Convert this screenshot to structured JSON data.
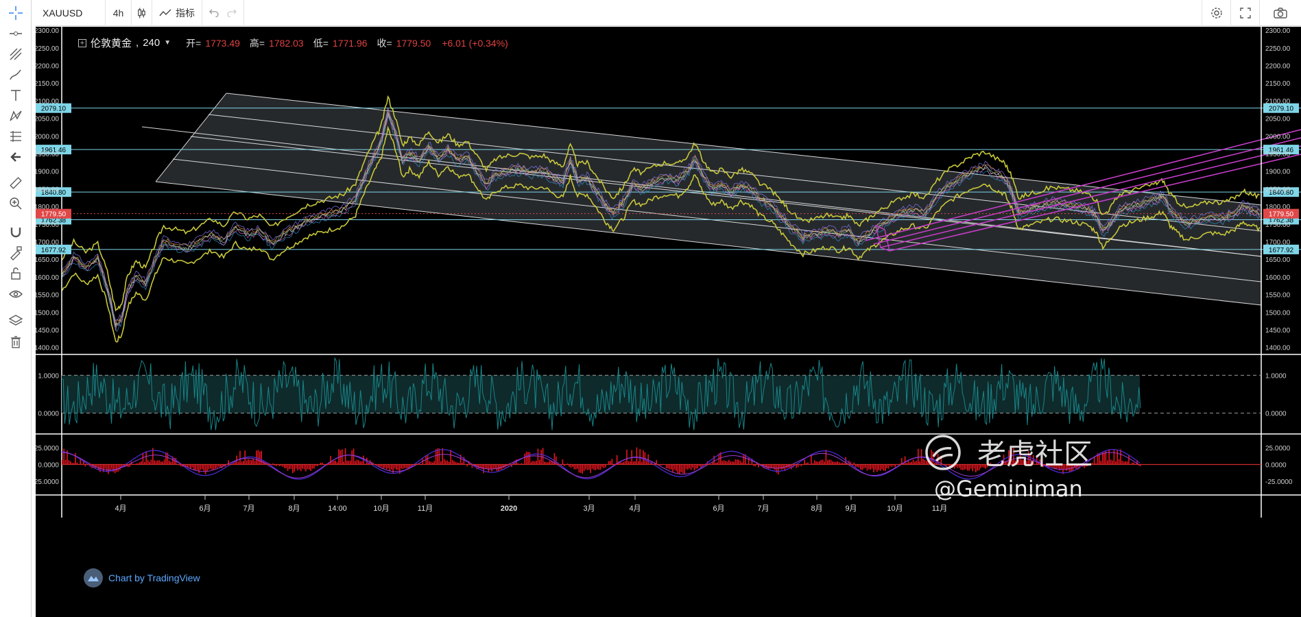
{
  "toolbar": {
    "symbol": "XAUUSD",
    "interval": "4h",
    "indicators_label": "指标",
    "icons": [
      "candle-type-icon",
      "indicators-icon",
      "undo-icon",
      "redo-icon",
      "settings-icon",
      "fullscreen-icon",
      "camera-icon"
    ]
  },
  "left_tools": [
    "crosshair-icon",
    "trend-line-icon",
    "pitchfork-icon",
    "brush-icon",
    "text-icon",
    "pattern-icon",
    "prediction-icon",
    "back-arrow-icon",
    "ruler-icon",
    "zoom-icon",
    "magnet-icon",
    "lock-drawing-icon",
    "unlock-icon",
    "eye-icon",
    "layers-icon",
    "trash-icon"
  ],
  "legend": {
    "symbol": "伦敦黄金",
    "interval": "240",
    "open_label": "开=",
    "open": "1773.49",
    "high_label": "高=",
    "high": "1782.03",
    "low_label": "低=",
    "low": "1771.96",
    "close_label": "收=",
    "close": "1779.50",
    "change": "+6.01 (+0.34%)"
  },
  "colors": {
    "background": "#000000",
    "hline": "#7fd6e8",
    "price_marker": "#e04848",
    "channel_fill": "#2a2d31",
    "channel_line": "#d9d9d9",
    "bands": "#c8c83a",
    "osc": "#17868a",
    "macd_hist": "#e8141e",
    "macd_line": "#4b2bd1",
    "pink_channel": "#c53cc7"
  },
  "chart_data": [
    {
      "type": "line",
      "title": "伦敦黄金, 240",
      "ylim": [
        1380,
        2310
      ],
      "y_ticks": [
        "2300.00",
        "2250.00",
        "2200.00",
        "2150.00",
        "2100.00",
        "2050.00",
        "2000.00",
        "1950.00",
        "1900.00",
        "1850.00",
        "1800.00",
        "1750.00",
        "1700.00",
        "1650.00",
        "1600.00",
        "1550.00",
        "1500.00",
        "1450.00",
        "1400.00"
      ],
      "x_ticks": [
        "4月",
        "6月",
        "7月",
        "8月",
        "14:00",
        "10月",
        "11月",
        "2020",
        "3月",
        "4月",
        "6月",
        "7月",
        "8月",
        "9月",
        "10月",
        "11月"
      ],
      "horizontal_levels": [
        "2079.10",
        "1961.46",
        "1840.80",
        "1762.38",
        "1677.92"
      ],
      "last_price": "1779.50",
      "price_path": [
        [
          0.0,
          1605
        ],
        [
          0.01,
          1655
        ],
        [
          0.02,
          1625
        ],
        [
          0.03,
          1650
        ],
        [
          0.038,
          1570
        ],
        [
          0.045,
          1460
        ],
        [
          0.05,
          1480
        ],
        [
          0.055,
          1560
        ],
        [
          0.062,
          1600
        ],
        [
          0.07,
          1580
        ],
        [
          0.078,
          1650
        ],
        [
          0.085,
          1700
        ],
        [
          0.095,
          1690
        ],
        [
          0.105,
          1680
        ],
        [
          0.115,
          1700
        ],
        [
          0.125,
          1720
        ],
        [
          0.135,
          1700
        ],
        [
          0.145,
          1740
        ],
        [
          0.155,
          1720
        ],
        [
          0.165,
          1730
        ],
        [
          0.175,
          1695
        ],
        [
          0.185,
          1720
        ],
        [
          0.195,
          1740
        ],
        [
          0.205,
          1760
        ],
        [
          0.215,
          1770
        ],
        [
          0.225,
          1780
        ],
        [
          0.235,
          1790
        ],
        [
          0.245,
          1820
        ],
        [
          0.252,
          1880
        ],
        [
          0.26,
          1940
        ],
        [
          0.266,
          1980
        ],
        [
          0.272,
          2065
        ],
        [
          0.278,
          2010
        ],
        [
          0.284,
          1930
        ],
        [
          0.29,
          1950
        ],
        [
          0.298,
          1930
        ],
        [
          0.306,
          1970
        ],
        [
          0.314,
          1935
        ],
        [
          0.322,
          1960
        ],
        [
          0.33,
          1930
        ],
        [
          0.338,
          1940
        ],
        [
          0.346,
          1900
        ],
        [
          0.354,
          1860
        ],
        [
          0.362,
          1890
        ],
        [
          0.372,
          1900
        ],
        [
          0.382,
          1905
        ],
        [
          0.392,
          1895
        ],
        [
          0.402,
          1900
        ],
        [
          0.41,
          1880
        ],
        [
          0.418,
          1870
        ],
        [
          0.424,
          1930
        ],
        [
          0.43,
          1875
        ],
        [
          0.438,
          1880
        ],
        [
          0.446,
          1840
        ],
        [
          0.454,
          1800
        ],
        [
          0.46,
          1780
        ],
        [
          0.468,
          1810
        ],
        [
          0.476,
          1860
        ],
        [
          0.484,
          1850
        ],
        [
          0.494,
          1870
        ],
        [
          0.504,
          1880
        ],
        [
          0.514,
          1875
        ],
        [
          0.522,
          1900
        ],
        [
          0.528,
          1935
        ],
        [
          0.534,
          1890
        ],
        [
          0.542,
          1850
        ],
        [
          0.55,
          1860
        ],
        [
          0.558,
          1840
        ],
        [
          0.566,
          1860
        ],
        [
          0.574,
          1850
        ],
        [
          0.582,
          1820
        ],
        [
          0.592,
          1800
        ],
        [
          0.6,
          1770
        ],
        [
          0.608,
          1740
        ],
        [
          0.618,
          1710
        ],
        [
          0.628,
          1720
        ],
        [
          0.638,
          1730
        ],
        [
          0.648,
          1720
        ],
        [
          0.656,
          1730
        ],
        [
          0.664,
          1700
        ],
        [
          0.672,
          1720
        ],
        [
          0.68,
          1740
        ],
        [
          0.69,
          1760
        ],
        [
          0.7,
          1780
        ],
        [
          0.71,
          1790
        ],
        [
          0.72,
          1780
        ],
        [
          0.73,
          1830
        ],
        [
          0.74,
          1860
        ],
        [
          0.75,
          1880
        ],
        [
          0.76,
          1900
        ],
        [
          0.77,
          1910
        ],
        [
          0.78,
          1890
        ],
        [
          0.786,
          1880
        ],
        [
          0.792,
          1840
        ],
        [
          0.798,
          1780
        ],
        [
          0.806,
          1790
        ],
        [
          0.816,
          1800
        ],
        [
          0.826,
          1810
        ],
        [
          0.836,
          1805
        ],
        [
          0.846,
          1800
        ],
        [
          0.856,
          1790
        ],
        [
          0.862,
          1775
        ],
        [
          0.868,
          1730
        ],
        [
          0.874,
          1750
        ],
        [
          0.882,
          1790
        ],
        [
          0.892,
          1800
        ],
        [
          0.902,
          1810
        ],
        [
          0.912,
          1820
        ],
        [
          0.918,
          1830
        ],
        [
          0.924,
          1790
        ],
        [
          0.93,
          1770
        ],
        [
          0.938,
          1750
        ],
        [
          0.948,
          1760
        ],
        [
          0.958,
          1770
        ],
        [
          0.968,
          1765
        ],
        [
          0.978,
          1780
        ],
        [
          0.985,
          1800
        ],
        [
          0.992,
          1790
        ],
        [
          1.0,
          1779.5
        ]
      ]
    },
    {
      "type": "line",
      "ylim": [
        -0.55,
        1.55
      ],
      "y_ticks": [
        "1.0000",
        "0.0000"
      ],
      "reference_levels": [
        1.0,
        0.0
      ]
    },
    {
      "type": "bar",
      "ylim": [
        -45,
        45
      ],
      "y_ticks": [
        "25.0000",
        "0.0000",
        "-25.0000"
      ]
    }
  ],
  "brand": {
    "tradingview": "Chart by TradingView"
  },
  "watermark": {
    "site": "老虎社区",
    "user": "@Geminiman"
  }
}
